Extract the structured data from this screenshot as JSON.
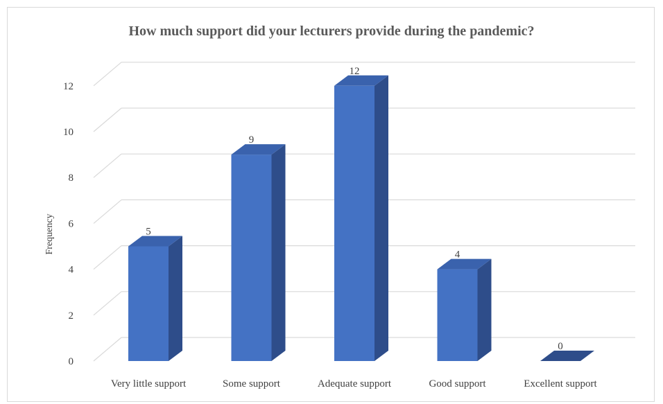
{
  "chart_data": {
    "type": "bar",
    "title": "How much support did your lecturers provide during the pandemic?",
    "xlabel": "",
    "ylabel": "Frequency",
    "categories": [
      "Very little support",
      "Some support",
      "Adequate support",
      "Good support",
      "Excellent support"
    ],
    "values": [
      5,
      9,
      12,
      4,
      0
    ],
    "ylim": [
      0,
      12
    ],
    "yticks": [
      0,
      2,
      4,
      6,
      8,
      10,
      12
    ],
    "grid": true,
    "legend": "none",
    "colors": {
      "bar_front": "#4472c4",
      "bar_side": "#2e4d8a",
      "bar_top": "#3a62ad",
      "grid": "#d9d9d9",
      "text": "#404040"
    }
  }
}
